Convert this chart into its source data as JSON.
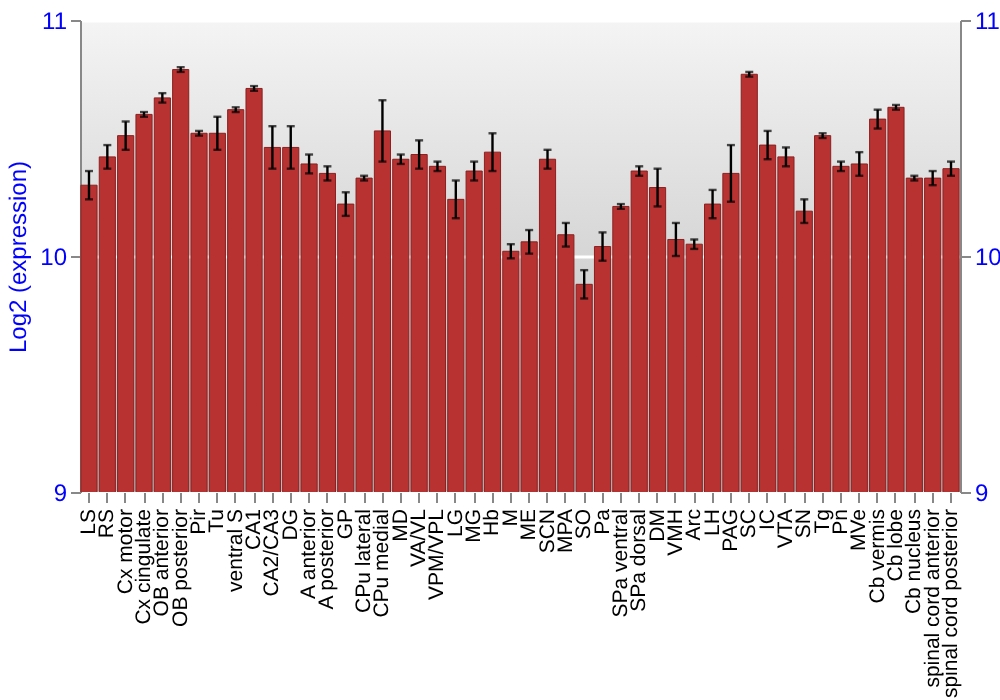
{
  "chart_data": {
    "type": "bar",
    "ylabel": "Log2 (expression)",
    "color": "#b83232",
    "categories": [
      "LS",
      "RS",
      "Cx motor",
      "Cx cingulate",
      "OB anterior",
      "OB posterior",
      "Pir",
      "Tu",
      "ventral S",
      "CA1",
      "CA2/CA3",
      "DG",
      "A anterior",
      "A posterior",
      "GP",
      "CPu lateral",
      "CPu medial",
      "MD",
      "VA/VL",
      "VPM/VPL",
      "LG",
      "MG",
      "Hb",
      "M",
      "ME",
      "SCN",
      "MPA",
      "SO",
      "Pa",
      "SPa ventral",
      "SPa dorsal",
      "DM",
      "VMH",
      "Arc",
      "LH",
      "PAG",
      "SC",
      "IC",
      "VTA",
      "SN",
      "Tg",
      "Pn",
      "MVe",
      "Cb vermis",
      "Cb lobe",
      "Cb nucleus",
      "spinal cord anterior",
      "spinal cord posterior"
    ],
    "values": [
      10.3,
      10.42,
      10.51,
      10.6,
      10.67,
      10.79,
      10.52,
      10.52,
      10.62,
      10.71,
      10.46,
      10.46,
      10.39,
      10.35,
      10.22,
      10.33,
      10.53,
      10.41,
      10.43,
      10.38,
      10.24,
      10.36,
      10.44,
      10.02,
      10.06,
      10.41,
      10.09,
      9.88,
      10.04,
      10.21,
      10.36,
      10.29,
      10.07,
      10.05,
      10.22,
      10.35,
      10.77,
      10.47,
      10.42,
      10.19,
      10.51,
      10.38,
      10.39,
      10.58,
      10.63,
      10.33,
      10.33,
      10.37
    ],
    "errors": [
      0.06,
      0.05,
      0.06,
      0.01,
      0.02,
      0.01,
      0.01,
      0.07,
      0.01,
      0.01,
      0.09,
      0.09,
      0.04,
      0.03,
      0.05,
      0.01,
      0.13,
      0.02,
      0.06,
      0.02,
      0.08,
      0.04,
      0.08,
      0.03,
      0.05,
      0.04,
      0.05,
      0.06,
      0.06,
      0.01,
      0.02,
      0.08,
      0.07,
      0.02,
      0.06,
      0.12,
      0.01,
      0.06,
      0.04,
      0.05,
      0.01,
      0.02,
      0.05,
      0.04,
      0.01,
      0.01,
      0.03,
      0.03
    ],
    "ylim": [
      9,
      11
    ],
    "yticks": [
      9,
      10,
      11
    ],
    "y2lim": [
      9,
      11
    ],
    "y2ticks": [
      9,
      10,
      11
    ],
    "grid": "y"
  }
}
